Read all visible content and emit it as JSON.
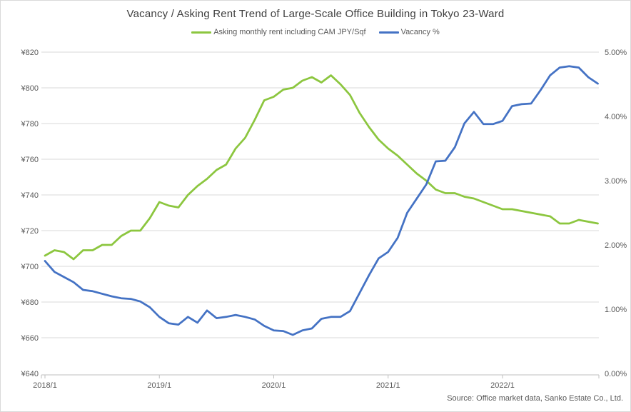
{
  "chart_data": {
    "type": "line",
    "title": "Vacancy / Asking Rent Trend of Large-Scale Office Building in Tokyo 23-Ward",
    "source_note": "Source: Office market data, Sanko Estate Co., Ltd.",
    "legend_position": "top",
    "grid": true,
    "categories": [
      "2018/1",
      "2018/2",
      "2018/3",
      "2018/4",
      "2018/5",
      "2018/6",
      "2018/7",
      "2018/8",
      "2018/9",
      "2018/10",
      "2018/11",
      "2018/12",
      "2019/1",
      "2019/2",
      "2019/3",
      "2019/4",
      "2019/5",
      "2019/6",
      "2019/7",
      "2019/8",
      "2019/9",
      "2019/10",
      "2019/11",
      "2019/12",
      "2020/1",
      "2020/2",
      "2020/3",
      "2020/4",
      "2020/5",
      "2020/6",
      "2020/7",
      "2020/8",
      "2020/9",
      "2020/10",
      "2020/11",
      "2020/12",
      "2021/1",
      "2021/2",
      "2021/3",
      "2021/4",
      "2021/5",
      "2021/6",
      "2021/7",
      "2021/8",
      "2021/9",
      "2021/10",
      "2021/11",
      "2021/12",
      "2022/1",
      "2022/2",
      "2022/3",
      "2022/4",
      "2022/5",
      "2022/6",
      "2022/7",
      "2022/8",
      "2022/9",
      "2022/10",
      "2022/11"
    ],
    "x_tick_labels": [
      "2018/1",
      "2019/1",
      "2020/1",
      "2021/1",
      "2022/1"
    ],
    "x_tick_indices": [
      0,
      12,
      24,
      36,
      48
    ],
    "series": [
      {
        "name": "Asking monthly rent including CAM JPY/Sqf",
        "axis": "left",
        "color": "#8CC63F",
        "values": [
          706,
          709,
          708,
          704,
          709,
          709,
          712,
          712,
          717,
          720,
          720,
          727,
          736,
          734,
          733,
          740,
          745,
          749,
          754,
          757,
          766,
          772,
          782,
          793,
          795,
          799,
          800,
          804,
          806,
          803,
          807,
          802,
          796,
          786,
          778,
          771,
          766,
          762,
          757,
          752,
          748,
          743,
          741,
          741,
          739,
          738,
          736,
          734,
          732,
          732,
          731,
          730,
          729,
          728,
          724,
          724,
          726,
          725,
          724
        ]
      },
      {
        "name": "Vacancy %",
        "axis": "right",
        "color": "#4472C4",
        "values": [
          1.75,
          1.58,
          1.5,
          1.42,
          1.3,
          1.28,
          1.24,
          1.2,
          1.17,
          1.16,
          1.12,
          1.03,
          0.88,
          0.78,
          0.76,
          0.88,
          0.79,
          0.98,
          0.86,
          0.88,
          0.91,
          0.88,
          0.84,
          0.74,
          0.67,
          0.66,
          0.6,
          0.67,
          0.7,
          0.85,
          0.88,
          0.88,
          0.97,
          1.25,
          1.53,
          1.79,
          1.89,
          2.11,
          2.5,
          2.72,
          2.94,
          3.3,
          3.31,
          3.52,
          3.89,
          4.07,
          3.88,
          3.88,
          3.93,
          4.16,
          4.19,
          4.2,
          4.41,
          4.64,
          4.76,
          4.78,
          4.76,
          4.61,
          4.51
        ]
      }
    ],
    "left_axis": {
      "ticks": [
        "¥820",
        "¥800",
        "¥780",
        "¥760",
        "¥740",
        "¥720",
        "¥700",
        "¥680",
        "¥660",
        "¥640"
      ],
      "values": [
        820,
        800,
        780,
        760,
        740,
        720,
        700,
        680,
        660,
        640
      ],
      "min": 640,
      "max": 820
    },
    "right_axis": {
      "ticks": [
        "5.00%",
        "4.00%",
        "3.00%",
        "2.00%",
        "1.00%",
        "0.00%"
      ],
      "values": [
        5,
        4,
        3,
        2,
        1,
        0
      ],
      "min": 0,
      "max": 5
    },
    "colors": {
      "gridline": "#D9D9D9",
      "axis_line": "#BFBFBF",
      "title_text": "#404040",
      "tick_text": "#595959"
    }
  }
}
